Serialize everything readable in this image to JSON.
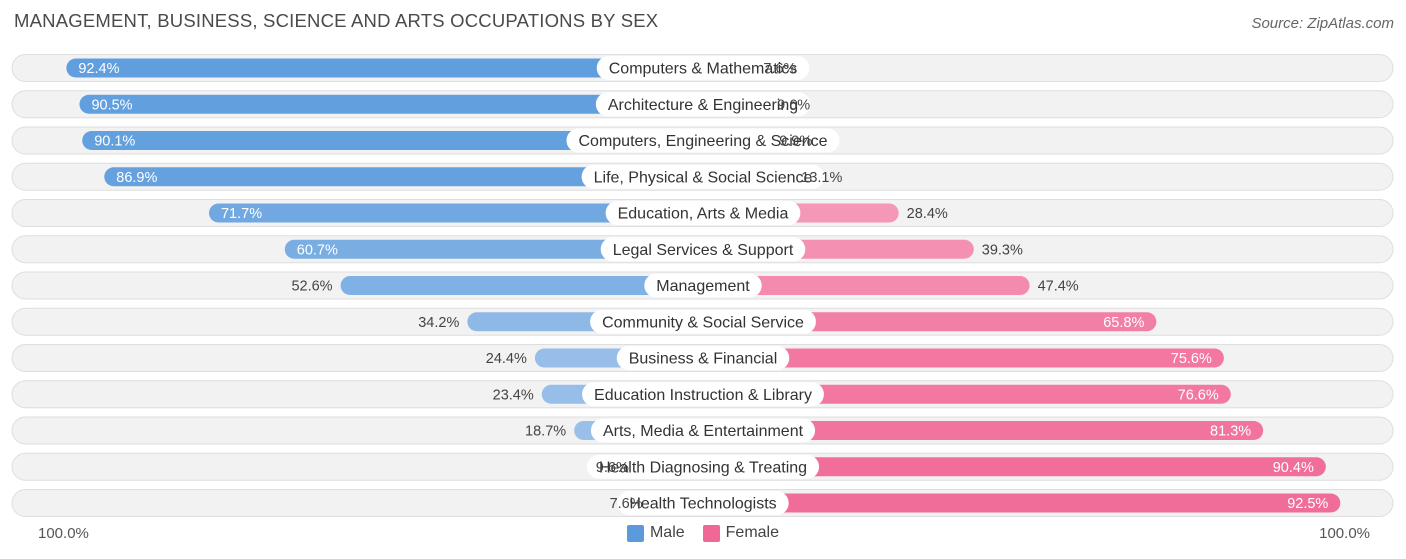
{
  "title": "MANAGEMENT, BUSINESS, SCIENCE AND ARTS OCCUPATIONS BY SEX",
  "source": "Source: ZipAtlas.com",
  "colors": {
    "male_dark": "#5b9bdc",
    "male_light": "#a9c9ec",
    "female_dark": "#f06896",
    "female_light": "#f7aac4",
    "row_bg": "#f2f2f2",
    "row_border": "#dedede"
  },
  "chart_data": {
    "type": "bar",
    "title": "MANAGEMENT, BUSINESS, SCIENCE AND ARTS OCCUPATIONS BY SEX",
    "categories": [
      "Computers & Mathematics",
      "Architecture & Engineering",
      "Computers, Engineering & Science",
      "Life, Physical & Social Science",
      "Education, Arts & Media",
      "Legal Services & Support",
      "Management",
      "Community & Social Service",
      "Business & Financial",
      "Education Instruction & Library",
      "Arts, Media & Entertainment",
      "Health Diagnosing & Treating",
      "Health Technologists"
    ],
    "series": [
      {
        "name": "Male",
        "values": [
          92.4,
          90.5,
          90.1,
          86.9,
          71.7,
          60.7,
          52.6,
          34.2,
          24.4,
          23.4,
          18.7,
          9.6,
          7.6
        ],
        "labels": [
          "92.4%",
          "90.5%",
          "90.1%",
          "86.9%",
          "71.7%",
          "60.7%",
          "52.6%",
          "34.2%",
          "24.4%",
          "23.4%",
          "18.7%",
          "9.6%",
          "7.6%"
        ]
      },
      {
        "name": "Female",
        "values": [
          7.6,
          9.6,
          9.9,
          13.1,
          28.4,
          39.3,
          47.4,
          65.8,
          75.6,
          76.6,
          81.3,
          90.4,
          92.5
        ],
        "labels": [
          "7.6%",
          "9.6%",
          "9.9%",
          "13.1%",
          "28.4%",
          "39.3%",
          "47.4%",
          "65.8%",
          "75.6%",
          "76.6%",
          "81.3%",
          "90.4%",
          "92.5%"
        ]
      }
    ],
    "axis": {
      "left_label": "100.0%",
      "right_label": "100.0%",
      "range": [
        0,
        100
      ]
    },
    "legend": [
      "Male",
      "Female"
    ],
    "legend_position": "bottom-center"
  }
}
